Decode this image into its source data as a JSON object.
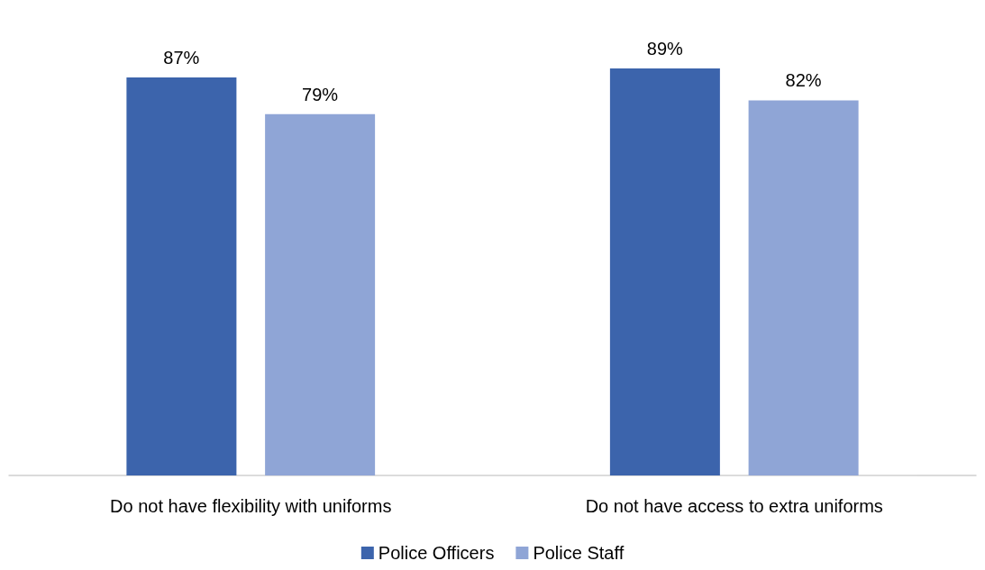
{
  "chart_data": {
    "type": "bar",
    "categories": [
      "Do not have flexibility with uniforms",
      "Do not have access to extra uniforms"
    ],
    "series": [
      {
        "name": "Police Officers",
        "color": "#3c64ac",
        "values": [
          87,
          89
        ],
        "value_labels": [
          "87%",
          "89%"
        ]
      },
      {
        "name": "Police Staff",
        "color": "#8fa5d6",
        "values": [
          79,
          82
        ],
        "value_labels": [
          "79%",
          "82%"
        ]
      }
    ],
    "tick_labels": "x",
    "legend": "bottom"
  }
}
